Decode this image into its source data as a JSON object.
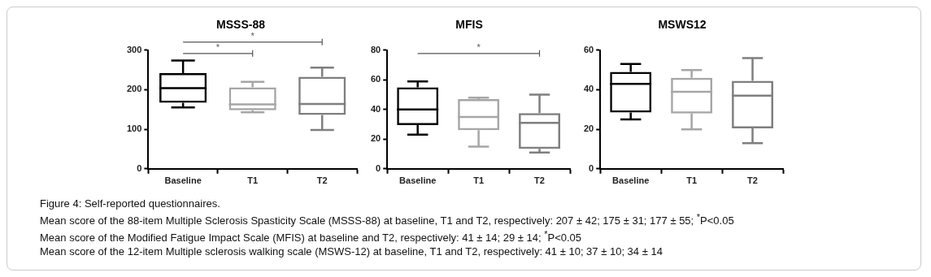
{
  "chart_data": [
    {
      "type": "box",
      "title": "MSSS-88",
      "categories": [
        "Baseline",
        "T1",
        "T2"
      ],
      "colors": [
        "#000000",
        "#a6a6a6",
        "#7f7f7f"
      ],
      "boxes": [
        {
          "low": 155,
          "q1": 167,
          "median": 204,
          "q3": 242,
          "high": 274
        },
        {
          "low": 143,
          "q1": 148,
          "median": 163,
          "q3": 206,
          "high": 220
        },
        {
          "low": 98,
          "q1": 136,
          "median": 164,
          "q3": 233,
          "high": 256
        }
      ],
      "ylim": [
        0,
        300
      ],
      "yticks": [
        0,
        100,
        200,
        300
      ],
      "grid": false,
      "annotations": [
        "*",
        "*"
      ]
    },
    {
      "type": "box",
      "title": "MFIS",
      "categories": [
        "Baseline",
        "T1",
        "T2"
      ],
      "colors": [
        "#000000",
        "#a6a6a6",
        "#7f7f7f"
      ],
      "boxes": [
        {
          "low": 23,
          "q1": 29.5,
          "median": 40,
          "q3": 55,
          "high": 59
        },
        {
          "low": 15,
          "q1": 26,
          "median": 35,
          "q3": 47,
          "high": 48
        },
        {
          "low": 11,
          "q1": 13.5,
          "median": 31,
          "q3": 37.5,
          "high": 50
        }
      ],
      "ylim": [
        0,
        80
      ],
      "yticks": [
        0,
        20,
        40,
        60,
        80
      ],
      "grid": false,
      "annotations": [
        "*"
      ]
    },
    {
      "type": "box",
      "title": "MSWS12",
      "categories": [
        "Baseline",
        "T1",
        "T2"
      ],
      "colors": [
        "#000000",
        "#a6a6a6",
        "#7f7f7f"
      ],
      "boxes": [
        {
          "low": 25,
          "q1": 28.5,
          "median": 43,
          "q3": 49,
          "high": 53
        },
        {
          "low": 20,
          "q1": 28,
          "median": 39,
          "q3": 46,
          "high": 50
        },
        {
          "low": 13,
          "q1": 20.5,
          "median": 37,
          "q3": 44.5,
          "high": 56
        }
      ],
      "ylim": [
        0,
        60
      ],
      "yticks": [
        0,
        20,
        40,
        60
      ],
      "grid": false
    },
    {
      "type": "other",
      "annotations": [
        "Figure 4: Self-reported questionnaires.",
        "Mean score of the 88-item Multiple Sclerosis Spasticity Scale (MSSS-88) at baseline, T1 and T2, respectively: 207 ± 42; 175 ± 31; 177 ± 55; $^{*}$P<0.05",
        "Mean score of the Modified Fatigue Impact Scale (MFIS) at baseline and T2, respectively: 41 ± 14; 29 ± 14; $^{*}$P<0.05",
        "Mean score of the 12-item Multiple sclerosis walking scale (MSWS-12) at baseline, T1 and T2, respectively: 41 ± 10; 37 ± 10; 34 ± 14"
      ]
    }
  ]
}
